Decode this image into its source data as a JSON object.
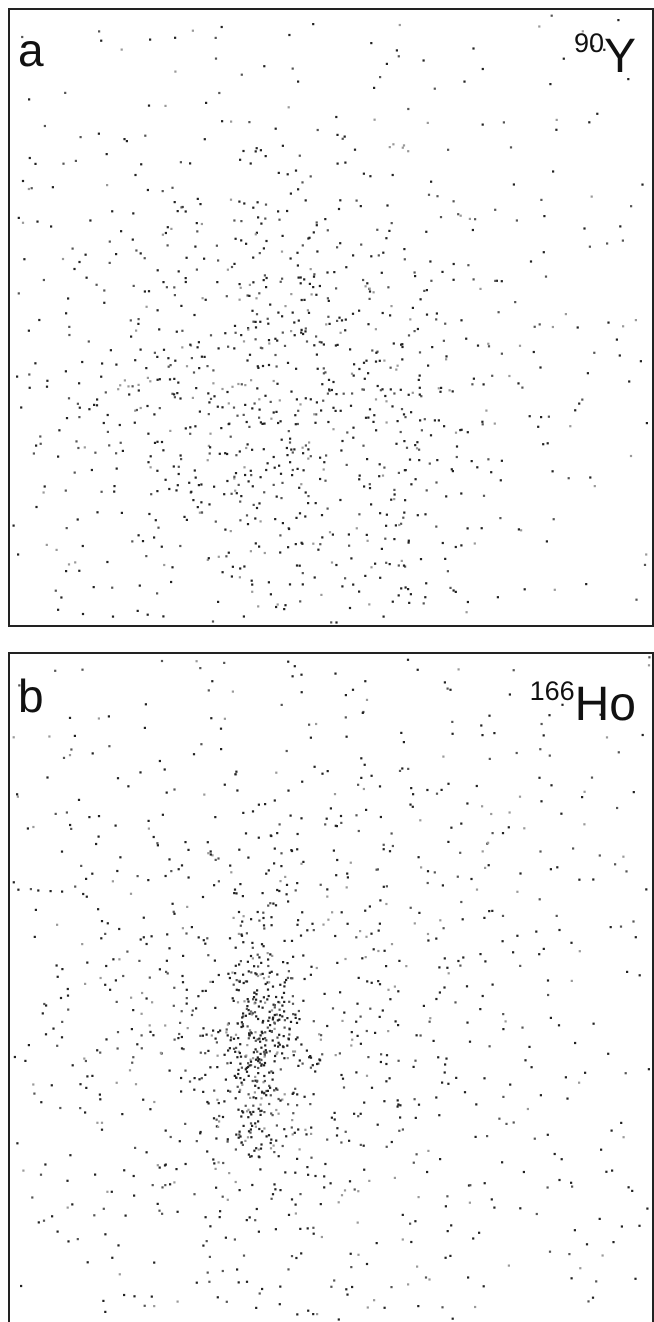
{
  "panels": [
    {
      "label": "a",
      "isotope": {
        "mass": "90",
        "symbol": "Y"
      }
    },
    {
      "label": "b",
      "isotope": {
        "mass": "166",
        "symbol": "Ho"
      }
    }
  ]
}
